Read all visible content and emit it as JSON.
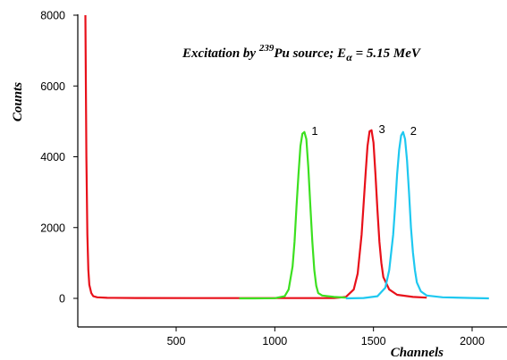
{
  "chart_data": {
    "type": "line",
    "xlabel": "Channels",
    "ylabel": "Counts",
    "xlim": [
      0,
      2150
    ],
    "ylim": [
      0,
      8000
    ],
    "xticks": [
      500,
      1000,
      1500,
      2000
    ],
    "yticks": [
      0,
      2000,
      4000,
      6000,
      8000
    ],
    "annotation": {
      "prefix": "Excitation by ",
      "superscript": "239",
      "source": "Pu source;  E",
      "subscript": "α",
      "suffix": " = 5.15 MeV"
    },
    "series": [
      {
        "label": "3",
        "color": "#e8101a",
        "x": [
          40,
          42,
          45,
          50,
          55,
          60,
          70,
          80,
          100,
          150,
          300,
          600,
          1000,
          1200,
          1300,
          1360,
          1400,
          1420,
          1440,
          1460,
          1470,
          1480,
          1490,
          1500,
          1510,
          1520,
          1530,
          1540,
          1550,
          1580,
          1620,
          1700,
          1770
        ],
        "values": [
          8000,
          6500,
          4000,
          1800,
          800,
          380,
          150,
          60,
          30,
          15,
          10,
          8,
          8,
          8,
          10,
          40,
          250,
          700,
          1800,
          3500,
          4300,
          4720,
          4750,
          4400,
          3500,
          2500,
          1600,
          1000,
          600,
          250,
          100,
          40,
          20
        ]
      },
      {
        "label": "1",
        "color": "#3ce020",
        "x": [
          820,
          900,
          1000,
          1050,
          1070,
          1090,
          1100,
          1110,
          1120,
          1130,
          1140,
          1150,
          1160,
          1170,
          1180,
          1190,
          1200,
          1210,
          1220,
          1240,
          1300,
          1360
        ],
        "values": [
          0,
          0,
          5,
          60,
          250,
          900,
          1600,
          2600,
          3500,
          4300,
          4650,
          4700,
          4500,
          3700,
          2600,
          1600,
          800,
          350,
          150,
          80,
          40,
          20
        ]
      },
      {
        "label": "2",
        "color": "#1ec8f0",
        "x": [
          1360,
          1450,
          1520,
          1560,
          1580,
          1600,
          1610,
          1620,
          1630,
          1640,
          1650,
          1660,
          1670,
          1680,
          1690,
          1700,
          1710,
          1720,
          1740,
          1770,
          1850,
          2000,
          2085
        ],
        "values": [
          0,
          10,
          60,
          300,
          800,
          1800,
          2600,
          3500,
          4200,
          4600,
          4700,
          4500,
          3900,
          3000,
          2000,
          1300,
          800,
          450,
          200,
          80,
          30,
          10,
          0
        ]
      }
    ]
  }
}
